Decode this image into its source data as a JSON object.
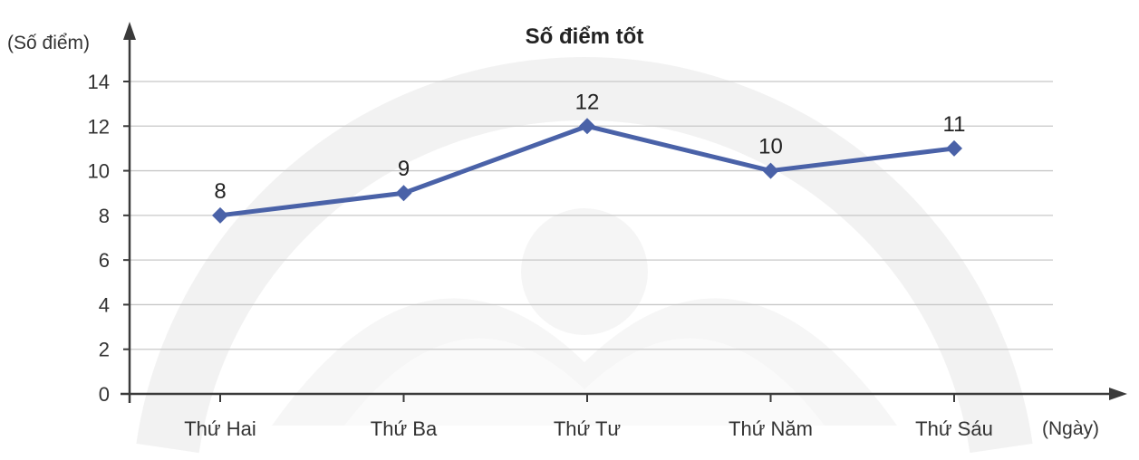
{
  "chart_data": {
    "type": "line",
    "title": "Số điểm tốt",
    "ylabel": "(Số điểm)",
    "xlabel": "(Ngày)",
    "categories": [
      "Thứ Hai",
      "Thứ Ba",
      "Thứ Tư",
      "Thứ Năm",
      "Thứ Sáu"
    ],
    "series": [
      {
        "values": [
          8,
          9,
          12,
          10,
          11
        ],
        "color": "#4a62a8"
      }
    ],
    "ylim": [
      0,
      14
    ],
    "yticks": [
      0,
      2,
      4,
      6,
      8,
      10,
      12,
      14
    ],
    "grid": true,
    "legend": "none",
    "gridline_color": "#c8c8c8",
    "axis_color": "#3a3a3a"
  }
}
